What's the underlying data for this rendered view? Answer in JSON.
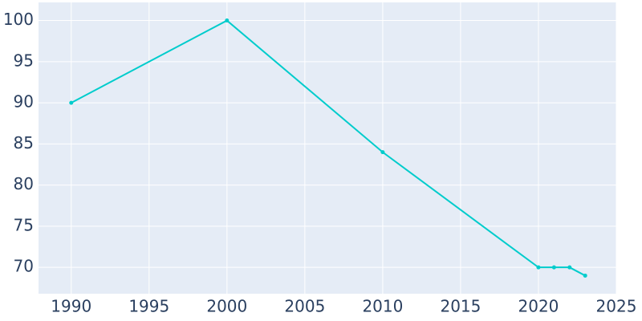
{
  "chart_data": {
    "type": "line",
    "x": [
      1990,
      2000,
      2010,
      2020,
      2021,
      2022,
      2023
    ],
    "series": [
      {
        "color": "#00cccc",
        "values": [
          90,
          100,
          84,
          70,
          70,
          70,
          69
        ]
      }
    ],
    "xlim": [
      1987.9,
      2025
    ],
    "xticks": [
      1990,
      1995,
      2000,
      2005,
      2010,
      2015,
      2020,
      2025
    ],
    "ylim": [
      66.8,
      102.2
    ],
    "yticks": [
      70,
      75,
      80,
      85,
      90,
      95,
      100
    ],
    "grid": true,
    "background": "#e5ecf6"
  }
}
